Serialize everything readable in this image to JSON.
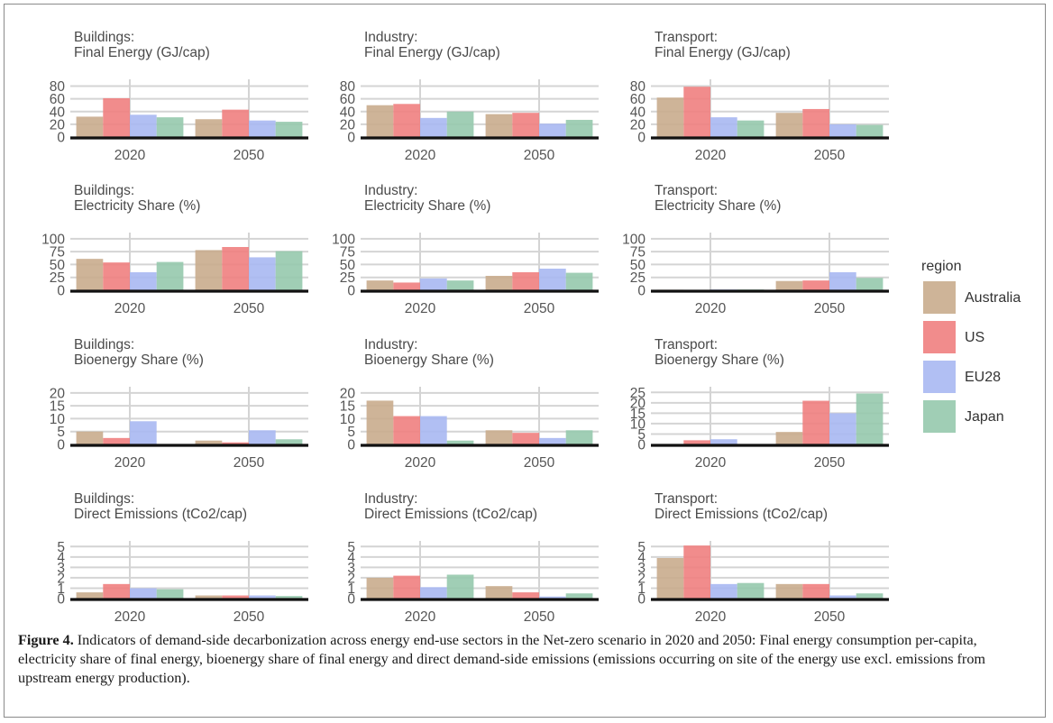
{
  "caption": {
    "label": "Figure 4.",
    "text": "Indicators of demand-side decarbonization across energy end-use sectors in the Net-zero scenario in 2020 and 2050: Final energy consumption per-capita, electricity share of final energy, bioenergy share of final energy and direct demand-side emissions (emissions occurring on site of the energy use excl. emissions from upstream energy production)."
  },
  "legend": {
    "title": "region",
    "placement": "right",
    "items": [
      {
        "name": "Australia",
        "color": "#c9ac8d"
      },
      {
        "name": "US",
        "color": "#f07f7f"
      },
      {
        "name": "EU28",
        "color": "#a9b8f2"
      },
      {
        "name": "Japan",
        "color": "#96c9ad"
      }
    ]
  },
  "chart_data": [
    {
      "type": "bar",
      "title": "Buildings:\nFinal Energy (GJ/cap)",
      "categories": [
        "2020",
        "2050"
      ],
      "yticks": [
        0,
        20,
        40,
        60,
        80
      ],
      "ylim": [
        0,
        85
      ],
      "series": [
        {
          "name": "Australia",
          "values": [
            32,
            28
          ]
        },
        {
          "name": "US",
          "values": [
            61,
            43
          ]
        },
        {
          "name": "EU28",
          "values": [
            35,
            26
          ]
        },
        {
          "name": "Japan",
          "values": [
            31,
            24
          ]
        }
      ]
    },
    {
      "type": "bar",
      "title": "Industry:\nFinal Energy (GJ/cap)",
      "categories": [
        "2020",
        "2050"
      ],
      "yticks": [
        0,
        20,
        40,
        60,
        80
      ],
      "ylim": [
        0,
        85
      ],
      "series": [
        {
          "name": "Australia",
          "values": [
            50,
            36
          ]
        },
        {
          "name": "US",
          "values": [
            52,
            38
          ]
        },
        {
          "name": "EU28",
          "values": [
            30,
            21
          ]
        },
        {
          "name": "Japan",
          "values": [
            40,
            27
          ]
        }
      ]
    },
    {
      "type": "bar",
      "title": "Transport:\nFinal Energy (GJ/cap)",
      "categories": [
        "2020",
        "2050"
      ],
      "yticks": [
        0,
        20,
        40,
        60,
        80
      ],
      "ylim": [
        0,
        85
      ],
      "series": [
        {
          "name": "Australia",
          "values": [
            62,
            38
          ]
        },
        {
          "name": "US",
          "values": [
            79,
            44
          ]
        },
        {
          "name": "EU28",
          "values": [
            31,
            20
          ]
        },
        {
          "name": "Japan",
          "values": [
            26,
            19
          ]
        }
      ]
    },
    {
      "type": "bar",
      "title": "Buildings:\nElectricity Share (%)",
      "categories": [
        "2020",
        "2050"
      ],
      "yticks": [
        0,
        25,
        50,
        75,
        100
      ],
      "ylim": [
        0,
        105
      ],
      "series": [
        {
          "name": "Australia",
          "values": [
            61,
            78
          ]
        },
        {
          "name": "US",
          "values": [
            54,
            84
          ]
        },
        {
          "name": "EU28",
          "values": [
            35,
            64
          ]
        },
        {
          "name": "Japan",
          "values": [
            55,
            76
          ]
        }
      ]
    },
    {
      "type": "bar",
      "title": "Industry:\nElectricity Share (%)",
      "categories": [
        "2020",
        "2050"
      ],
      "yticks": [
        0,
        25,
        50,
        75,
        100
      ],
      "ylim": [
        0,
        105
      ],
      "series": [
        {
          "name": "Australia",
          "values": [
            19,
            28
          ]
        },
        {
          "name": "US",
          "values": [
            15,
            35
          ]
        },
        {
          "name": "EU28",
          "values": [
            23,
            42
          ]
        },
        {
          "name": "Japan",
          "values": [
            19,
            34
          ]
        }
      ]
    },
    {
      "type": "bar",
      "title": "Transport:\nElectricity Share (%)",
      "categories": [
        "2020",
        "2050"
      ],
      "yticks": [
        0,
        25,
        50,
        75,
        100
      ],
      "ylim": [
        0,
        105
      ],
      "series": [
        {
          "name": "Australia",
          "values": [
            1,
            18
          ]
        },
        {
          "name": "US",
          "values": [
            0.5,
            19
          ]
        },
        {
          "name": "EU28",
          "values": [
            1.5,
            35
          ]
        },
        {
          "name": "Japan",
          "values": [
            1.5,
            24
          ]
        }
      ]
    },
    {
      "type": "bar",
      "title": "Buildings:\nBioenergy Share (%)",
      "categories": [
        "2020",
        "2050"
      ],
      "yticks": [
        0,
        5,
        10,
        15,
        20
      ],
      "ylim": [
        0,
        21
      ],
      "series": [
        {
          "name": "Australia",
          "values": [
            5,
            1.5
          ]
        },
        {
          "name": "US",
          "values": [
            2.5,
            0.8
          ]
        },
        {
          "name": "EU28",
          "values": [
            9,
            5.5
          ]
        },
        {
          "name": "Japan",
          "values": [
            0,
            2
          ]
        }
      ]
    },
    {
      "type": "bar",
      "title": "Industry:\nBioenergy Share (%)",
      "categories": [
        "2020",
        "2050"
      ],
      "yticks": [
        0,
        5,
        10,
        15,
        20
      ],
      "ylim": [
        0,
        21
      ],
      "series": [
        {
          "name": "Australia",
          "values": [
            17,
            5.5
          ]
        },
        {
          "name": "US",
          "values": [
            11,
            4.5
          ]
        },
        {
          "name": "EU28",
          "values": [
            11,
            2.5
          ]
        },
        {
          "name": "Japan",
          "values": [
            1.5,
            5.5
          ]
        }
      ]
    },
    {
      "type": "bar",
      "title": "Transport:\nBioenergy Share (%)",
      "categories": [
        "2020",
        "2050"
      ],
      "yticks": [
        0,
        5,
        10,
        15,
        20,
        25
      ],
      "ylim": [
        0,
        26
      ],
      "series": [
        {
          "name": "Australia",
          "values": [
            0,
            6
          ]
        },
        {
          "name": "US",
          "values": [
            2,
            21
          ]
        },
        {
          "name": "EU28",
          "values": [
            2.5,
            15
          ]
        },
        {
          "name": "Japan",
          "values": [
            0,
            24.5
          ]
        }
      ]
    },
    {
      "type": "bar",
      "title": "Buildings:\nDirect Emissions (tCo2/cap)",
      "categories": [
        "2020",
        "2050"
      ],
      "yticks": [
        0,
        1,
        2,
        3,
        4,
        5
      ],
      "ylim": [
        0,
        5.2
      ],
      "series": [
        {
          "name": "Australia",
          "values": [
            0.6,
            0.3
          ]
        },
        {
          "name": "US",
          "values": [
            1.4,
            0.3
          ]
        },
        {
          "name": "EU28",
          "values": [
            1.0,
            0.3
          ]
        },
        {
          "name": "Japan",
          "values": [
            0.9,
            0.25
          ]
        }
      ]
    },
    {
      "type": "bar",
      "title": "Industry:\nDirect Emissions (tCo2/cap)",
      "categories": [
        "2020",
        "2050"
      ],
      "yticks": [
        0,
        1,
        2,
        3,
        4,
        5
      ],
      "ylim": [
        0,
        5.2
      ],
      "series": [
        {
          "name": "Australia",
          "values": [
            2.0,
            1.2
          ]
        },
        {
          "name": "US",
          "values": [
            2.2,
            0.6
          ]
        },
        {
          "name": "EU28",
          "values": [
            1.1,
            0.2
          ]
        },
        {
          "name": "Japan",
          "values": [
            2.3,
            0.5
          ]
        }
      ]
    },
    {
      "type": "bar",
      "title": "Transport:\nDirect Emissions (tCo2/cap)",
      "categories": [
        "2020",
        "2050"
      ],
      "yticks": [
        0,
        1,
        2,
        3,
        4,
        5
      ],
      "ylim": [
        0,
        5.2
      ],
      "series": [
        {
          "name": "Australia",
          "values": [
            3.9,
            1.4
          ]
        },
        {
          "name": "US",
          "values": [
            5.1,
            1.4
          ]
        },
        {
          "name": "EU28",
          "values": [
            1.4,
            0.3
          ]
        },
        {
          "name": "Japan",
          "values": [
            1.5,
            0.5
          ]
        }
      ]
    }
  ]
}
